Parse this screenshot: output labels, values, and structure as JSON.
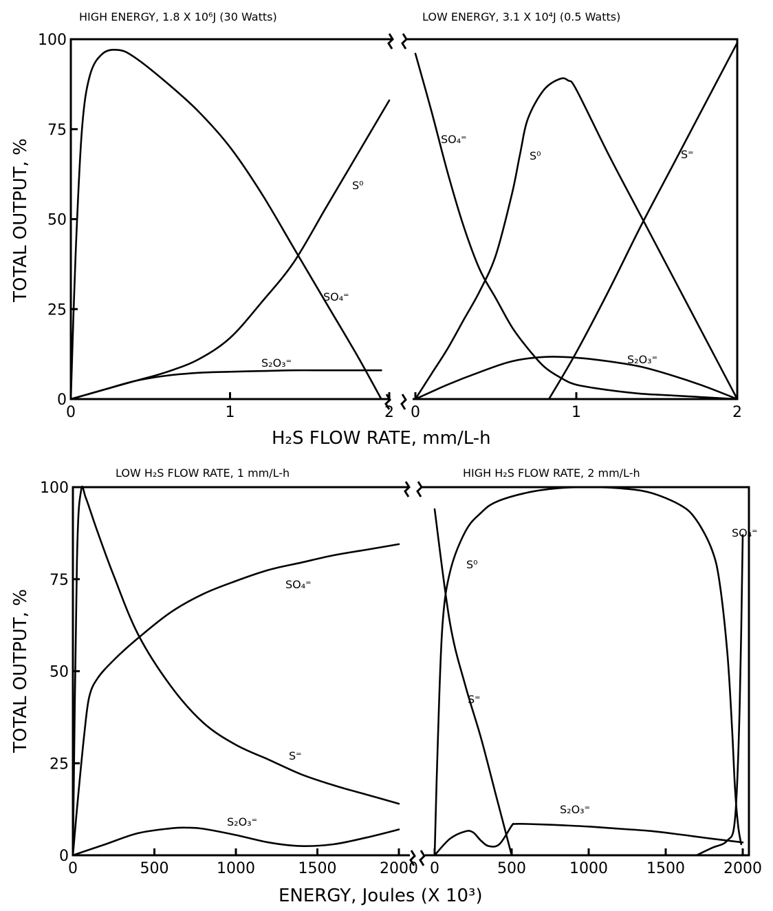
{
  "chart_data": [
    {
      "type": "line",
      "title": "HIGH ENERGY, 1.8 X 10⁶J (30 Watts)",
      "xlabel": "H₂S FLOW RATE, mm/L-h",
      "ylabel": "TOTAL OUTPUT, %",
      "xlim": [
        0,
        2
      ],
      "ylim": [
        0,
        100
      ],
      "xticks": [
        "0",
        "1",
        "2"
      ],
      "yticks": [
        "0",
        "25",
        "50",
        "75",
        "100"
      ],
      "series": [
        {
          "name": "S⁰",
          "x": [
            0,
            0.2,
            0.4,
            0.6,
            0.8,
            1.0,
            1.2,
            1.4,
            1.6,
            1.8,
            2.0
          ],
          "y": [
            0,
            2.5,
            5,
            7.5,
            11,
            17,
            27,
            38,
            53,
            68,
            83
          ]
        },
        {
          "name": "SO₄⁼",
          "x": [
            0,
            0.03,
            0.07,
            0.12,
            0.2,
            0.3,
            0.4,
            0.6,
            0.8,
            1.0,
            1.2,
            1.4,
            1.6,
            1.8,
            1.95
          ],
          "y": [
            0,
            40,
            75,
            90,
            96,
            97,
            95,
            88,
            80,
            70,
            57,
            42,
            27,
            12,
            0
          ]
        },
        {
          "name": "S₂O₃⁼",
          "x": [
            0,
            0.2,
            0.4,
            0.6,
            0.8,
            1.0,
            1.2,
            1.4,
            1.6,
            1.8,
            1.95
          ],
          "y": [
            0,
            2.5,
            5,
            6.5,
            7.3,
            7.6,
            7.8,
            8,
            8,
            8,
            8
          ]
        }
      ]
    },
    {
      "type": "line",
      "title": "LOW ENERGY, 3.1 X 10⁴J (0.5 Watts)",
      "xlabel": "H₂S FLOW RATE, mm/L-h",
      "xlim": [
        0,
        2
      ],
      "ylim": [
        0,
        100
      ],
      "xticks": [
        "0",
        "1",
        "2"
      ],
      "series": [
        {
          "name": "SO₄⁼",
          "x": [
            0,
            0.1,
            0.2,
            0.3,
            0.4,
            0.5,
            0.6,
            0.7,
            0.8,
            0.9,
            1.0,
            1.2,
            1.4,
            1.6,
            1.8,
            2.0
          ],
          "y": [
            96,
            80,
            63,
            48,
            36,
            28,
            20,
            14,
            9,
            6,
            4,
            2.5,
            1.5,
            1,
            0.5,
            0
          ]
        },
        {
          "name": "S⁰",
          "x": [
            0,
            0.1,
            0.2,
            0.3,
            0.4,
            0.5,
            0.6,
            0.65,
            0.7,
            0.8,
            0.9,
            0.95,
            1.0,
            1.2,
            1.4,
            1.6,
            1.8,
            2.0
          ],
          "y": [
            0,
            7,
            14,
            22,
            30,
            40,
            57,
            68,
            78,
            86,
            89,
            88.5,
            86,
            68,
            51,
            34,
            17,
            0
          ]
        },
        {
          "name": "S⁼",
          "x": [
            0.83,
            1.0,
            1.2,
            1.4,
            1.6,
            1.8,
            2.0
          ],
          "y": [
            0,
            13,
            30,
            48,
            65,
            82,
            99
          ]
        },
        {
          "name": "S₂O₃⁼",
          "x": [
            0,
            0.2,
            0.4,
            0.6,
            0.8,
            1.0,
            1.2,
            1.4,
            1.6,
            1.8,
            2.0
          ],
          "y": [
            0,
            4,
            7.5,
            10.5,
            11.7,
            11.5,
            10.5,
            9,
            6.5,
            3.5,
            0
          ]
        }
      ]
    },
    {
      "type": "line",
      "title": "LOW H₂S FLOW RATE, 1 mm/L-h",
      "xlabel": "ENERGY, Joules (X 10³)",
      "ylabel": "TOTAL OUTPUT, %",
      "xlim": [
        0,
        2000
      ],
      "ylim": [
        0,
        100
      ],
      "xticks": [
        "0",
        "500",
        "1000",
        "1500",
        "2000"
      ],
      "yticks": [
        "0",
        "25",
        "50",
        "75",
        "100"
      ],
      "series": [
        {
          "name": "S⁼",
          "x": [
            0,
            25,
            50,
            80,
            150,
            250,
            400,
            600,
            800,
            1000,
            1200,
            1400,
            1600,
            1800,
            2000
          ],
          "y": [
            0,
            80,
            99,
            97,
            88,
            76,
            60,
            46,
            36,
            30,
            26,
            22,
            19,
            16.5,
            14
          ]
        },
        {
          "name": "SO₄⁼",
          "x": [
            0,
            30,
            70,
            100,
            150,
            250,
            400,
            600,
            800,
            1000,
            1200,
            1400,
            1600,
            1800,
            2000
          ],
          "y": [
            0,
            15,
            33,
            43,
            48,
            53,
            59,
            66,
            71,
            74.5,
            77.5,
            79.5,
            81.5,
            83,
            84.5
          ]
        },
        {
          "name": "S₂O₃⁼",
          "x": [
            0,
            200,
            400,
            600,
            700,
            800,
            1000,
            1200,
            1400,
            1600,
            1800,
            2000
          ],
          "y": [
            0,
            3,
            6,
            7.3,
            7.5,
            7.2,
            5.5,
            3.5,
            2.5,
            3,
            4.8,
            7
          ]
        }
      ]
    },
    {
      "type": "line",
      "title": "HIGH H₂S FLOW RATE, 2 mm/L-h",
      "xlabel": "ENERGY, Joules (X 10³)",
      "xlim": [
        0,
        2000
      ],
      "ylim": [
        0,
        100
      ],
      "xticks": [
        "0",
        "500",
        "1000",
        "1500",
        "2000"
      ],
      "series": [
        {
          "name": "S⁰",
          "x": [
            0,
            20,
            50,
            100,
            200,
            300,
            400,
            600,
            800,
            1000,
            1200,
            1400,
            1600,
            1700,
            1800,
            1850,
            1900,
            1930,
            1950,
            1970,
            1990
          ],
          "y": [
            0,
            30,
            62,
            77,
            88,
            93,
            96,
            98.5,
            99.7,
            100,
            99.7,
            98.5,
            95,
            91,
            83,
            74,
            55,
            35,
            18,
            8,
            3
          ]
        },
        {
          "name": "S⁼",
          "x": [
            0,
            100,
            200,
            300,
            400,
            500
          ],
          "y": [
            94,
            63,
            46,
            32,
            16,
            0
          ]
        },
        {
          "name": "SO₄⁼",
          "x": [
            1700,
            1800,
            1900,
            1950,
            1980,
            2000
          ],
          "y": [
            0,
            2,
            4,
            10,
            40,
            87
          ]
        },
        {
          "name": "S₂O₃⁼",
          "x": [
            0,
            100,
            200,
            250,
            300,
            350,
            420,
            500,
            520,
            600,
            800,
            1000,
            1200,
            1400,
            1600,
            1800,
            2000
          ],
          "y": [
            0,
            4.5,
            6.5,
            6.2,
            4,
            2.5,
            3,
            8,
            8.5,
            8.5,
            8.2,
            7.8,
            7.2,
            6.6,
            5.6,
            4.5,
            3.5
          ]
        }
      ]
    }
  ],
  "labels": {
    "top_xlabel": "H₂S FLOW RATE, mm/L-h",
    "bottom_xlabel": "ENERGY, Joules (X 10³)",
    "ylabel": "TOTAL OUTPUT, %"
  }
}
